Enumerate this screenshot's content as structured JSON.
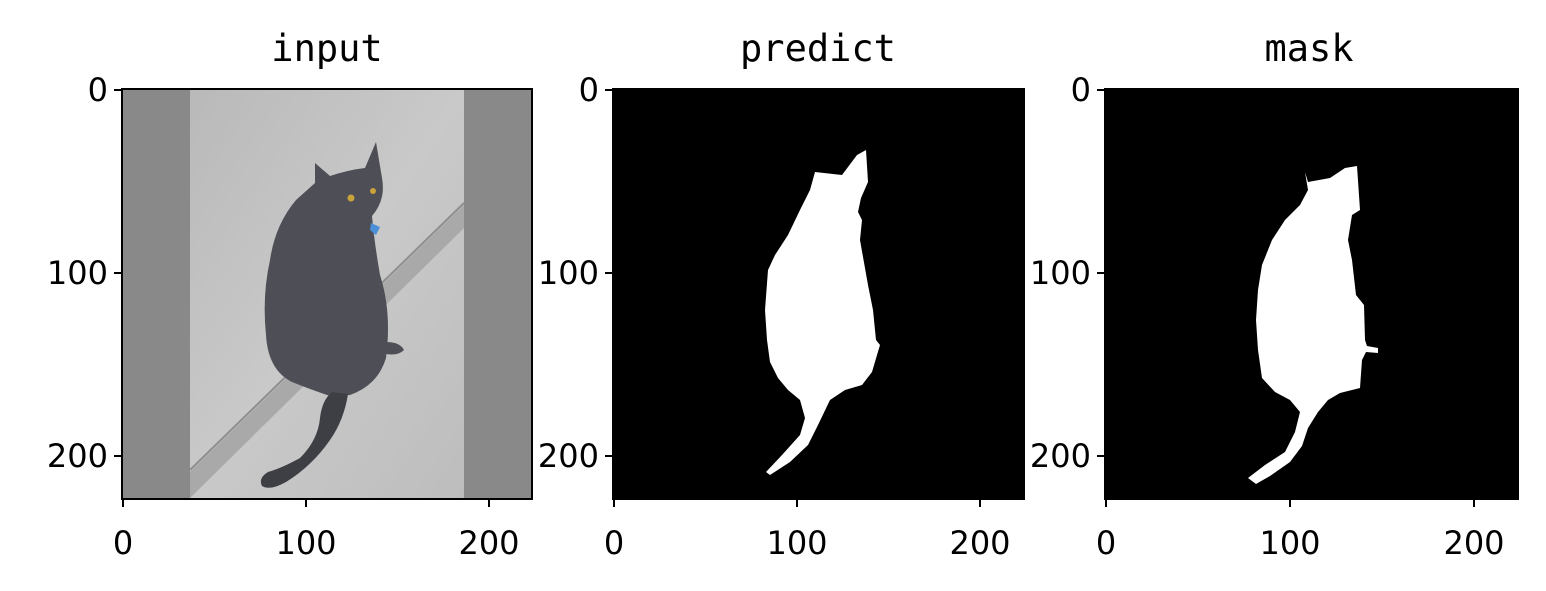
{
  "panels": [
    {
      "title": "input",
      "x_ticks": [
        "0",
        "100",
        "200"
      ],
      "y_ticks": [
        "0",
        "100",
        "200"
      ]
    },
    {
      "title": "predict",
      "x_ticks": [
        "0",
        "100",
        "200"
      ],
      "y_ticks": [
        "0",
        "100",
        "200"
      ]
    },
    {
      "title": "mask",
      "x_ticks": [
        "0",
        "100",
        "200"
      ],
      "y_ticks": [
        "0",
        "100",
        "200"
      ]
    }
  ],
  "colors": {
    "padding_gray": "#898989",
    "concrete": "#c4c4c4",
    "cat": "#4e4f56",
    "mask_bg": "#000000",
    "mask_fg": "#ffffff",
    "collar_tag": "#4a8fd8"
  }
}
